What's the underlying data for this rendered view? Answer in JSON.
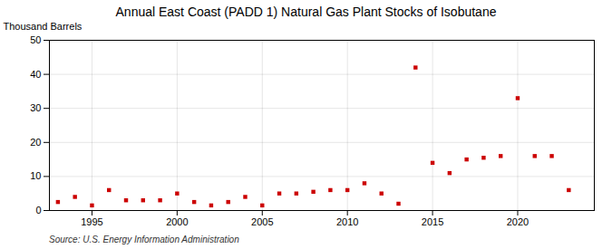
{
  "chart_data": {
    "type": "scatter",
    "title": "Annual East Coast (PADD 1) Natural Gas Plant Stocks of Isobutane",
    "ylabel": "Thousand Barrels",
    "source": "Source: U.S. Energy Information Administration",
    "x": [
      1993,
      1994,
      1995,
      1996,
      1997,
      1998,
      1999,
      2000,
      2001,
      2002,
      2003,
      2004,
      2005,
      2006,
      2007,
      2008,
      2009,
      2010,
      2011,
      2012,
      2013,
      2014,
      2015,
      2016,
      2017,
      2018,
      2019,
      2020,
      2021,
      2022,
      2023
    ],
    "values": [
      2.5,
      4.0,
      1.5,
      6.0,
      3.0,
      3.0,
      3.0,
      5.0,
      2.5,
      1.5,
      2.5,
      4.0,
      1.5,
      5.0,
      5.0,
      5.5,
      6.0,
      6.0,
      8.0,
      5.0,
      2.0,
      42.0,
      14.0,
      11.0,
      15.0,
      15.5,
      16.0,
      33.0,
      16.0,
      16.0,
      6.0
    ],
    "color": "#cc0000",
    "marker": "square",
    "xlim": [
      1992.5,
      2024.5
    ],
    "xticks": [
      1995,
      2000,
      2005,
      2010,
      2015,
      2020
    ],
    "ylim": [
      0,
      50
    ],
    "yticks": [
      0,
      10,
      20,
      30,
      40,
      50
    ],
    "grid": true
  }
}
